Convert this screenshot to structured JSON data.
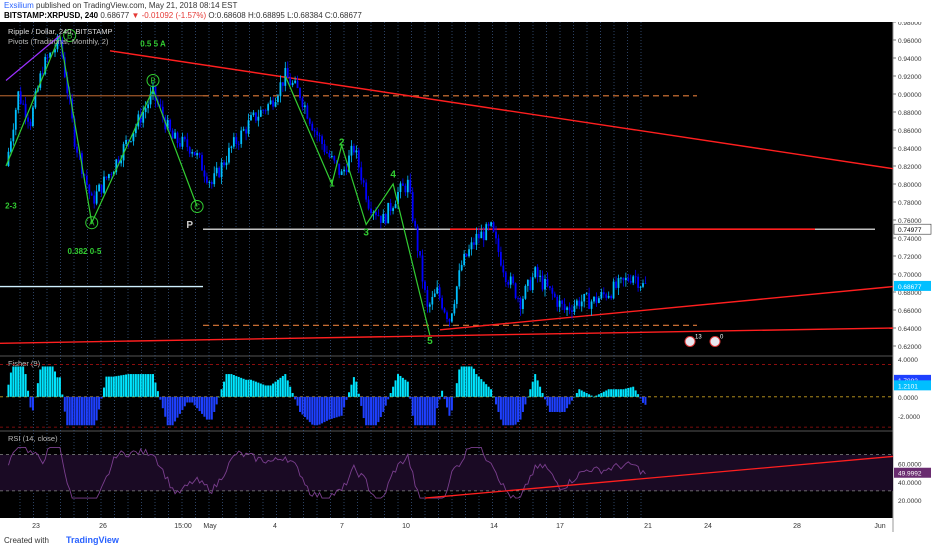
{
  "header": {
    "publisher": "Exsilium",
    "published_text": "published on TradingView.com, May 21, 2018 08:14 EST",
    "symbol": "BITSTAMP:XRPUSD, 240",
    "last": "0.68677",
    "change_arrow": "▼",
    "change": "-0.01092 (-1.57%)",
    "ohlc": "O:0.68608 H:0.68895 L:0.68384 C:0.68677"
  },
  "footer": {
    "created": "Created with",
    "brand": "TradingView"
  },
  "colors": {
    "background": "#000000",
    "bull": "#00bfff",
    "bear": "#0000ff",
    "wave": "#32cd32",
    "trend": "#ff1f1f",
    "pivot": "#e07b39",
    "rsi": "#6a2c70",
    "fisher_up": "#00e5ff",
    "fisher_down": "#1e40ff"
  },
  "chart_data": [
    {
      "type": "candlestick",
      "title": "Ripple / Dollar, 240, BITSTAMP",
      "indicator": "Pivots (Traditional, Monthly, 2)",
      "ylim": [
        0.61,
        0.98
      ],
      "y_ticks": [
        "0.98000",
        "0.96000",
        "0.94000",
        "0.92000",
        "0.90000",
        "0.88000",
        "0.86000",
        "0.84000",
        "0.82000",
        "0.80000",
        "0.78000",
        "0.76000",
        "0.74000",
        "0.72000",
        "0.70000",
        "0.68000",
        "0.66000",
        "0.64000",
        "0.62000"
      ],
      "x_ticks": [
        "23",
        "26",
        "15:00",
        "May",
        "4",
        "7",
        "10",
        "14",
        "17",
        "21",
        "24",
        "28",
        "Jun"
      ],
      "price_labels": [
        {
          "value": 0.74977,
          "text": "0.74977",
          "color": "#ffffff"
        },
        {
          "value": 0.68677,
          "text": "0.68677",
          "color": "#00bfff"
        }
      ],
      "price_path": [
        {
          "i": 0,
          "v": 0.82
        },
        {
          "i": 5,
          "v": 0.9
        },
        {
          "i": 10,
          "v": 0.87
        },
        {
          "i": 15,
          "v": 0.93
        },
        {
          "i": 22,
          "v": 0.96
        },
        {
          "i": 28,
          "v": 0.85
        },
        {
          "i": 35,
          "v": 0.78
        },
        {
          "i": 44,
          "v": 0.82
        },
        {
          "i": 52,
          "v": 0.86
        },
        {
          "i": 60,
          "v": 0.9
        },
        {
          "i": 68,
          "v": 0.85
        },
        {
          "i": 76,
          "v": 0.84
        },
        {
          "i": 84,
          "v": 0.8
        },
        {
          "i": 92,
          "v": 0.84
        },
        {
          "i": 100,
          "v": 0.87
        },
        {
          "i": 108,
          "v": 0.89
        },
        {
          "i": 114,
          "v": 0.92
        },
        {
          "i": 120,
          "v": 0.9
        },
        {
          "i": 126,
          "v": 0.86
        },
        {
          "i": 132,
          "v": 0.83
        },
        {
          "i": 137,
          "v": 0.81
        },
        {
          "i": 142,
          "v": 0.84
        },
        {
          "i": 148,
          "v": 0.78
        },
        {
          "i": 154,
          "v": 0.76
        },
        {
          "i": 160,
          "v": 0.79
        },
        {
          "i": 164,
          "v": 0.8
        },
        {
          "i": 168,
          "v": 0.73
        },
        {
          "i": 172,
          "v": 0.66
        },
        {
          "i": 176,
          "v": 0.68
        },
        {
          "i": 181,
          "v": 0.65
        },
        {
          "i": 186,
          "v": 0.71
        },
        {
          "i": 192,
          "v": 0.74
        },
        {
          "i": 198,
          "v": 0.75
        },
        {
          "i": 204,
          "v": 0.7
        },
        {
          "i": 210,
          "v": 0.67
        },
        {
          "i": 216,
          "v": 0.7
        },
        {
          "i": 222,
          "v": 0.68
        },
        {
          "i": 228,
          "v": 0.66
        },
        {
          "i": 234,
          "v": 0.67
        },
        {
          "i": 240,
          "v": 0.67
        },
        {
          "i": 246,
          "v": 0.68
        },
        {
          "i": 252,
          "v": 0.69
        },
        {
          "i": 256,
          "v": 0.7
        },
        {
          "i": 260,
          "v": 0.687
        }
      ],
      "wave_labels": [
        {
          "text": "B",
          "x": 26,
          "v": 0.965,
          "circle": true
        },
        {
          "text": "B",
          "x": 60,
          "v": 0.915,
          "circle": true
        },
        {
          "text": "A",
          "x": 35,
          "v": 0.757,
          "circle": true
        },
        {
          "text": "C",
          "x": 78,
          "v": 0.775,
          "circle": true
        },
        {
          "text": "0.5 5 A",
          "x": 60,
          "v": 0.953,
          "circle": false
        },
        {
          "text": "2-3",
          "x": 2,
          "v": 0.773,
          "circle": false
        },
        {
          "text": "0.382 0-5",
          "x": 32,
          "v": 0.722,
          "circle": false
        },
        {
          "text": "2",
          "x": 137,
          "v": 0.843,
          "circle": false
        },
        {
          "text": "1",
          "x": 133,
          "v": 0.797,
          "circle": false
        },
        {
          "text": "4",
          "x": 158,
          "v": 0.807,
          "circle": false
        },
        {
          "text": "3",
          "x": 147,
          "v": 0.743,
          "circle": false
        },
        {
          "text": "5",
          "x": 173,
          "v": 0.622,
          "circle": false
        },
        {
          "text": "P",
          "x": 75,
          "v": 0.751,
          "circle": false
        }
      ],
      "event_markers": [
        "13",
        "0"
      ]
    },
    {
      "type": "histogram",
      "title": "Fisher (9)",
      "ylim": [
        -3.5,
        4.2
      ],
      "y_ticks": [
        "4.0000",
        "2.0000",
        "0.0000",
        "-2.0000"
      ],
      "value_labels": [
        "1.7882",
        "1.2101"
      ]
    },
    {
      "type": "line",
      "title": "RSI (14, close)",
      "ylim": [
        0,
        95
      ],
      "y_ticks": [
        "60.0000",
        "40.0000",
        "20.0000"
      ],
      "value_label": "49.9992"
    }
  ]
}
